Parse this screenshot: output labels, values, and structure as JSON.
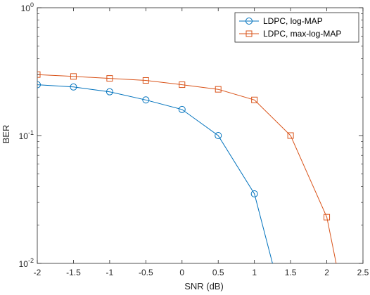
{
  "chart_data": {
    "type": "line",
    "xlabel": "SNR (dB)",
    "ylabel": "BER",
    "xlim": [
      -2,
      2.5
    ],
    "ylim": [
      0.01,
      1
    ],
    "yscale": "log",
    "grid": false,
    "legend_position": "top-right",
    "x_ticks": [
      {
        "value": -2,
        "label": "-2"
      },
      {
        "value": -1.5,
        "label": "-1.5"
      },
      {
        "value": -1,
        "label": "-1"
      },
      {
        "value": -0.5,
        "label": "-0.5"
      },
      {
        "value": 0,
        "label": "0"
      },
      {
        "value": 0.5,
        "label": "0.5"
      },
      {
        "value": 1,
        "label": "1"
      },
      {
        "value": 1.5,
        "label": "1.5"
      },
      {
        "value": 2,
        "label": "2"
      },
      {
        "value": 2.5,
        "label": "2.5"
      }
    ],
    "y_ticks": [
      {
        "value": 0.01,
        "base": "10",
        "exp": "-2"
      },
      {
        "value": 0.1,
        "base": "10",
        "exp": "-1"
      },
      {
        "value": 1,
        "base": "10",
        "exp": "0"
      }
    ],
    "series": [
      {
        "name": "LDPC, log-MAP",
        "color": "#0072BD",
        "marker": "circle",
        "x": [
          -2,
          -1.5,
          -1,
          -0.5,
          0,
          0.5,
          1,
          1.25
        ],
        "y": [
          0.25,
          0.24,
          0.22,
          0.19,
          0.16,
          0.1,
          0.035,
          0.01
        ],
        "marker_shown": [
          true,
          true,
          true,
          true,
          true,
          true,
          true,
          false
        ]
      },
      {
        "name": "LDPC, max-log-MAP",
        "color": "#D95319",
        "marker": "square",
        "x": [
          -2,
          -1.5,
          -1,
          -0.5,
          0,
          0.5,
          1,
          1.5,
          2,
          2.13
        ],
        "y": [
          0.3,
          0.29,
          0.28,
          0.27,
          0.25,
          0.23,
          0.19,
          0.1,
          0.023,
          0.01
        ],
        "marker_shown": [
          true,
          true,
          true,
          true,
          true,
          true,
          true,
          true,
          true,
          false
        ]
      }
    ]
  }
}
